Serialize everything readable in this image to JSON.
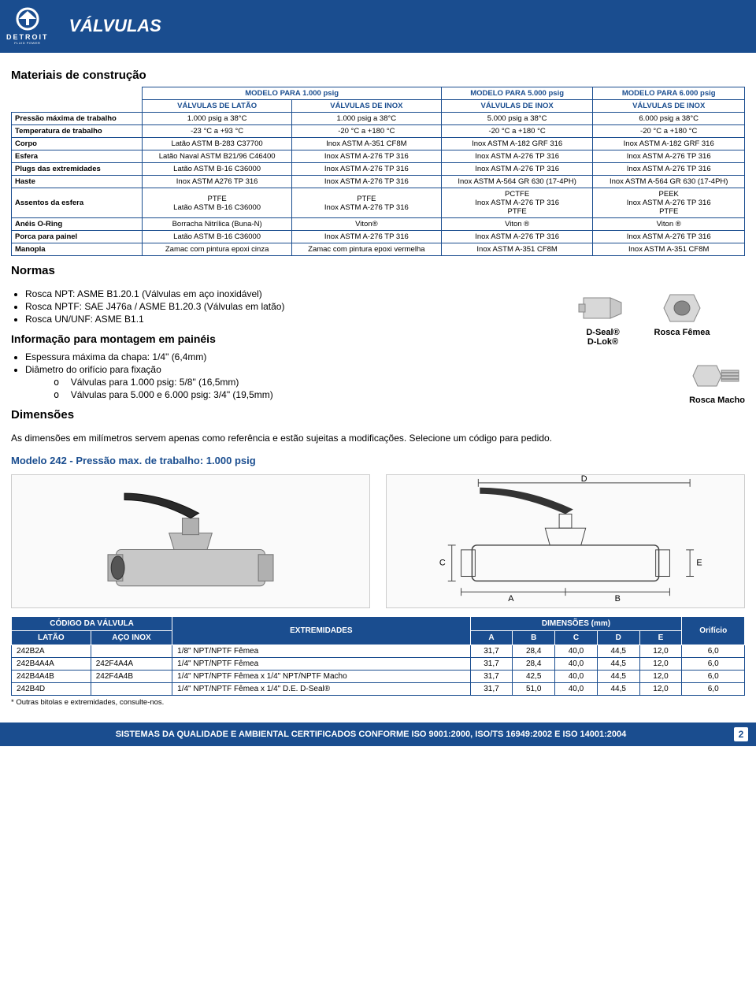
{
  "brand": {
    "name": "DETROIT",
    "tagline": "FLUID POWER"
  },
  "header": {
    "title": "VÁLVULAS"
  },
  "sections": {
    "materiais": "Materiais de construção",
    "normas": "Normas",
    "info_montagem": "Informação para montagem em painéis",
    "dimensoes": "Dimensões",
    "modelo242": "Modelo 242 - Pressão max. de trabalho: 1.000 psig"
  },
  "mat_table": {
    "model_headers": [
      "MODELO PARA 1.000 psig",
      "MODELO PARA 5.000 psig",
      "MODELO PARA 6.000 psig"
    ],
    "sub_headers": [
      "VÁLVULAS DE LATÃO",
      "VÁLVULAS DE INOX",
      "VÁLVULAS DE INOX",
      "VÁLVULAS DE INOX"
    ],
    "colspan_model": [
      2,
      1,
      1
    ],
    "rows": [
      {
        "label": "Pressão máxima de trabalho",
        "cells": [
          "1.000 psig a 38°C",
          "1.000 psig a 38°C",
          "5.000 psig a 38°C",
          "6.000 psig a 38°C"
        ]
      },
      {
        "label": "Temperatura de trabalho",
        "cells": [
          "-23 °C a +93 °C",
          "-20 °C a +180 °C",
          "-20 °C a +180 °C",
          "-20 °C a +180 °C"
        ]
      },
      {
        "label": "Corpo",
        "cells": [
          "Latão ASTM B-283 C37700",
          "Inox ASTM A-351 CF8M",
          "Inox ASTM A-182 GRF 316",
          "Inox ASTM A-182 GRF 316"
        ]
      },
      {
        "label": "Esfera",
        "cells": [
          "Latão Naval ASTM B21/96 C46400",
          "Inox ASTM A-276 TP 316",
          "Inox ASTM A-276 TP 316",
          "Inox ASTM A-276 TP 316"
        ]
      },
      {
        "label": "Plugs das extremidades",
        "cells": [
          "Latão ASTM B-16 C36000",
          "Inox ASTM A-276 TP 316",
          "Inox ASTM A-276 TP 316",
          "Inox ASTM A-276 TP 316"
        ]
      },
      {
        "label": "Haste",
        "cells": [
          "Inox ASTM A276 TP 316",
          "Inox ASTM A-276 TP 316",
          "Inox ASTM A-564 GR 630 (17-4PH)",
          "Inox ASTM A-564 GR 630 (17-4PH)"
        ]
      },
      {
        "label": "Assentos da esfera",
        "cells": [
          "PTFE\nLatão ASTM B-16 C36000",
          "PTFE\nInox ASTM A-276 TP 316",
          "PCTFE\nInox ASTM A-276 TP 316\nPTFE",
          "PEEK\nInox ASTM A-276 TP 316\nPTFE"
        ]
      },
      {
        "label": "Anéis O-Ring",
        "cells": [
          "Borracha Nitrílica (Buna-N)",
          "Viton®",
          "Viton ®",
          "Viton ®"
        ]
      },
      {
        "label": "Porca para painel",
        "cells": [
          "Latão ASTM B-16 C36000",
          "Inox ASTM A-276 TP 316",
          "Inox ASTM A-276 TP 316",
          "Inox ASTM A-276 TP 316"
        ]
      },
      {
        "label": "Manopla",
        "cells": [
          "Zamac com pintura epoxi cinza",
          "Zamac com pintura epoxi vermelha",
          "Inox ASTM A-351 CF8M",
          "Inox ASTM A-351 CF8M"
        ]
      }
    ]
  },
  "normas_list": [
    "Rosca NPT: ASME B1.20.1 (Válvulas em aço inoxidável)",
    "Rosca NPTF: SAE J476a / ASME B1.20.3 (Válvulas em latão)",
    "Rosca UN/UNF: ASME B1.1"
  ],
  "montagem_list": [
    "Espessura máxima da chapa: 1/4\" (6,4mm)",
    "Diâmetro do orifício para fixação"
  ],
  "montagem_sub": [
    "Válvulas para 1.000 psig: 5/8\" (16,5mm)",
    "Válvulas para 5.000 e 6.000 psig: 3/4\" (19,5mm)"
  ],
  "connectors": {
    "left_label": "D-Seal®\nD-Lok®",
    "right_top": "Rosca Fêmea",
    "right_bottom": "Rosca Macho"
  },
  "dim_paragraph": "As dimensões em milímetros servem apenas como referência e estão sujeitas a modificações. Selecione um código para pedido.",
  "dim_table": {
    "headers": {
      "codigo": "CÓDIGO DA VÁLVULA",
      "latao": "LATÃO",
      "inox": "AÇO INOX",
      "extremidades": "EXTREMIDADES",
      "dimensoes": "DIMENSÕES (mm)",
      "cols": [
        "A",
        "B",
        "C",
        "D",
        "E"
      ],
      "orificio": "Orifício"
    },
    "rows": [
      {
        "latao": "242B2A",
        "inox": "",
        "ext": "1/8\" NPT/NPTF Fêmea",
        "d": [
          "31,7",
          "28,4",
          "40,0",
          "44,5",
          "12,0"
        ],
        "o": "6,0"
      },
      {
        "latao": "242B4A4A",
        "inox": "242F4A4A",
        "ext": "1/4\" NPT/NPTF Fêmea",
        "d": [
          "31,7",
          "28,4",
          "40,0",
          "44,5",
          "12,0"
        ],
        "o": "6,0"
      },
      {
        "latao": "242B4A4B",
        "inox": "242F4A4B",
        "ext": "1/4\" NPT/NPTF Fêmea x 1/4\" NPT/NPTF Macho",
        "d": [
          "31,7",
          "42,5",
          "40,0",
          "44,5",
          "12,0"
        ],
        "o": "6,0"
      },
      {
        "latao": "242B4D",
        "inox": "",
        "ext": "1/4\" NPT/NPTF Fêmea x 1/4\" D.E. D-Seal®",
        "d": [
          "31,7",
          "51,0",
          "40,0",
          "44,5",
          "12,0"
        ],
        "o": "6,0"
      }
    ],
    "footnote": "* Outras bitolas e extremidades, consulte-nos."
  },
  "footer": {
    "text": "SISTEMAS DA QUALIDADE E AMBIENTAL CERTIFICADOS CONFORME ISO 9001:2000, ISO/TS 16949:2002 E ISO 14001:2004",
    "page": "2"
  },
  "diagram_labels": {
    "a": "A",
    "b": "B",
    "c": "C",
    "d": "D",
    "e": "E"
  }
}
